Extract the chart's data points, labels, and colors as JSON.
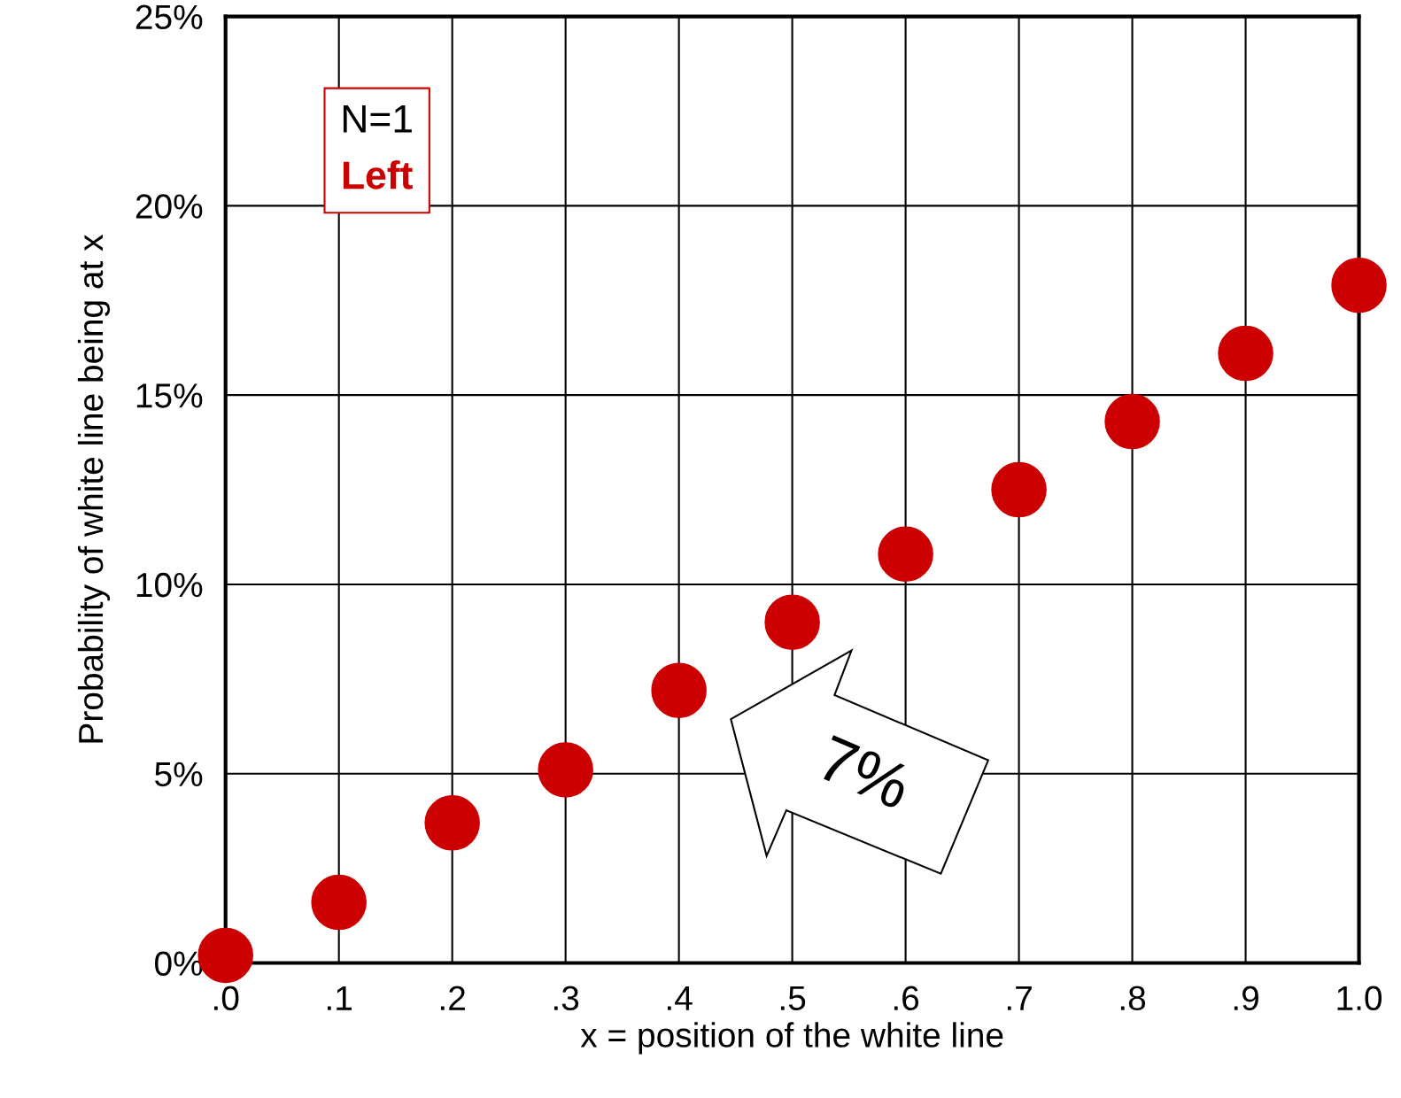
{
  "chart_data": {
    "type": "scatter",
    "xlabel": "x = position of the white line",
    "ylabel": "Probability of white line being at x",
    "x": [
      0,
      0.1,
      0.2,
      0.3,
      0.4,
      0.5,
      0.6,
      0.7,
      0.8,
      0.9,
      1.0
    ],
    "series": [
      {
        "name": "Left",
        "color": "#cc0000",
        "values": [
          0.2,
          1.6,
          3.7,
          5.1,
          7.2,
          9.0,
          10.8,
          12.5,
          14.3,
          16.1,
          17.9
        ]
      }
    ],
    "legend_title": "N=1",
    "legend": "top left",
    "marker": "circle",
    "xlim": [
      0,
      1.0
    ],
    "ylim": [
      0,
      25
    ],
    "xticks": [
      {
        "value": 0,
        "label": ".0"
      },
      {
        "value": 0.1,
        "label": ".1"
      },
      {
        "value": 0.2,
        "label": ".2"
      },
      {
        "value": 0.3,
        "label": ".3"
      },
      {
        "value": 0.4,
        "label": ".4"
      },
      {
        "value": 0.5,
        "label": ".5"
      },
      {
        "value": 0.6,
        "label": ".6"
      },
      {
        "value": 0.7,
        "label": ".7"
      },
      {
        "value": 0.8,
        "label": ".8"
      },
      {
        "value": 0.9,
        "label": ".9"
      },
      {
        "value": 1.0,
        "label": "1.0"
      }
    ],
    "yticks": [
      {
        "value": 0,
        "label": "0%"
      },
      {
        "value": 5,
        "label": "5%"
      },
      {
        "value": 10,
        "label": "10%"
      },
      {
        "value": 15,
        "label": "15%"
      },
      {
        "value": 20,
        "label": "20%"
      },
      {
        "value": 25,
        "label": "25%"
      }
    ],
    "grid": true,
    "annotations": [
      "7%"
    ]
  }
}
